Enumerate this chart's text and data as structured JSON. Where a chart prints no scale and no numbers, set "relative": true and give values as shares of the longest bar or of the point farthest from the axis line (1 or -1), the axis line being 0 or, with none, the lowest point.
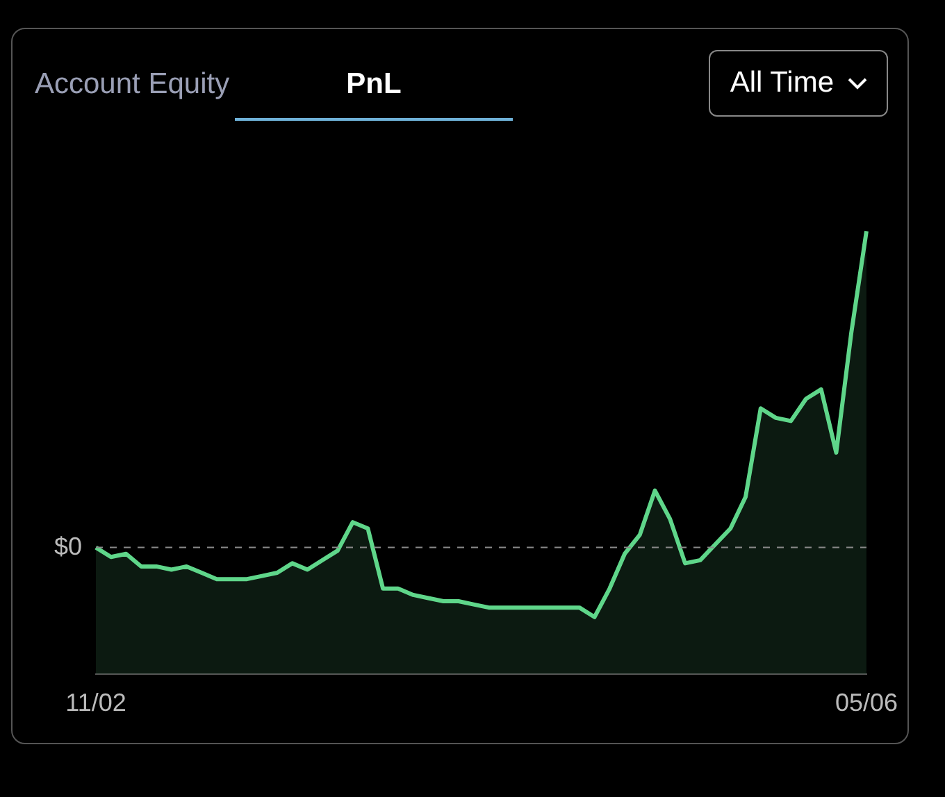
{
  "chart_data": {
    "type": "area",
    "relative": true,
    "annotations": [
      "Account Equity",
      "PnL",
      "All Time"
    ],
    "categories": [
      "11/02",
      null,
      null,
      null,
      null,
      null,
      null,
      null,
      null,
      null,
      null,
      null,
      null,
      null,
      null,
      null,
      null,
      null,
      null,
      null,
      null,
      null,
      null,
      null,
      null,
      null,
      null,
      null,
      null,
      null,
      null,
      null,
      null,
      null,
      null,
      null,
      null,
      null,
      null,
      null,
      null,
      null,
      null,
      null,
      null,
      null,
      null,
      null,
      null,
      null,
      null,
      "05/06"
    ],
    "series": [
      {
        "color": "#5fd68a",
        "values": [
          0,
          -0.03,
          -0.02,
          -0.06,
          -0.06,
          -0.07,
          -0.06,
          -0.08,
          -0.1,
          -0.1,
          -0.1,
          -0.09,
          -0.08,
          -0.05,
          -0.07,
          -0.04,
          -0.01,
          0.08,
          0.06,
          -0.13,
          -0.13,
          -0.15,
          -0.16,
          -0.17,
          -0.17,
          -0.18,
          -0.19,
          -0.19,
          -0.19,
          -0.19,
          -0.19,
          -0.19,
          -0.19,
          -0.22,
          -0.13,
          -0.02,
          0.04,
          0.18,
          0.09,
          -0.05,
          -0.04,
          0.01,
          0.06,
          0.16,
          0.44,
          0.41,
          0.4,
          0.47,
          0.5,
          0.3,
          0.68,
          1
        ]
      }
    ],
    "ref_lines": [
      {
        "axis": "y",
        "value": 0,
        "label": "$0",
        "color": "#8a8a8a",
        "line_style": "dashed"
      }
    ],
    "grid": false,
    "legend": false,
    "marker": "none",
    "line_style": "solid"
  }
}
